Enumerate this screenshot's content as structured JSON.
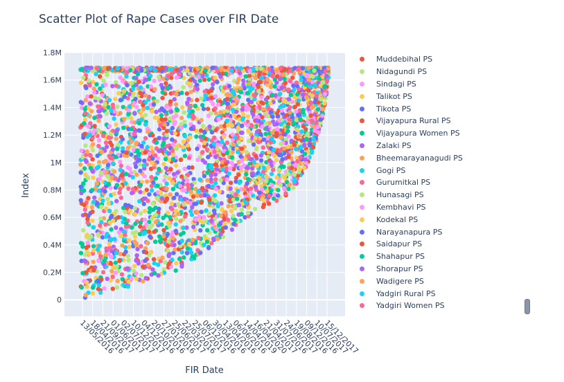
{
  "chart_data": {
    "type": "scatter",
    "title": "Scatter Plot of Rape Cases over FIR Date",
    "xlabel": "FIR Date",
    "ylabel": "Index",
    "ylim": [
      -120000,
      1800000
    ],
    "y_ticks": [
      {
        "value": 0,
        "label": "0"
      },
      {
        "value": 200000,
        "label": "0.2M"
      },
      {
        "value": 400000,
        "label": "0.4M"
      },
      {
        "value": 600000,
        "label": "0.6M"
      },
      {
        "value": 800000,
        "label": "0.8M"
      },
      {
        "value": 1000000,
        "label": "1M"
      },
      {
        "value": 1200000,
        "label": "1.2M"
      },
      {
        "value": 1400000,
        "label": "1.4M"
      },
      {
        "value": 1600000,
        "label": "1.6M"
      },
      {
        "value": 1800000,
        "label": "1.8M"
      }
    ],
    "x_tick_labels": [
      "13/05/2016",
      "18/04/2016",
      "21/09/2017",
      "01/06/2017",
      "02/07/2017",
      "10/12/2017",
      "04/12/2016",
      "20/10/2016",
      "27/01/2016",
      "25/06/2017",
      "22/03/2016",
      "25/07/2017",
      "06/12/2016",
      "30/04/2016",
      "13/04/2016",
      "06/06/2016",
      "14/04/2019",
      "16/04/2020",
      "21/04/2017",
      "31/07/2016",
      "24/06/2017",
      "19/08/2016",
      "09/12/2016",
      "10/07/2017",
      "15/12/2017"
    ],
    "series": [
      {
        "name": "Muddebihal PS",
        "color": "#EF553B"
      },
      {
        "name": "Nidagundi PS",
        "color": "#B6E880"
      },
      {
        "name": "Sindagi PS",
        "color": "#FF97FF"
      },
      {
        "name": "Talikot PS",
        "color": "#FECB52"
      },
      {
        "name": "Tikota PS",
        "color": "#636EFA"
      },
      {
        "name": "Vijayapura Rural PS",
        "color": "#EF553B"
      },
      {
        "name": "Vijayapura Women PS",
        "color": "#00CC96"
      },
      {
        "name": "Zalaki PS",
        "color": "#AB63FA"
      },
      {
        "name": "Bheemarayanagudi PS",
        "color": "#FFA15A"
      },
      {
        "name": "Gogi PS",
        "color": "#19D3F3"
      },
      {
        "name": "Gurumitkal PS",
        "color": "#FF6692"
      },
      {
        "name": "Hunasagi PS",
        "color": "#B6E880"
      },
      {
        "name": "Kembhavi PS",
        "color": "#FF97FF"
      },
      {
        "name": "Kodekal PS",
        "color": "#FECB52"
      },
      {
        "name": "Narayanapura PS",
        "color": "#636EFA"
      },
      {
        "name": "Saidapur PS",
        "color": "#EF553B"
      },
      {
        "name": "Shahapur  PS",
        "color": "#00CC96"
      },
      {
        "name": "Shorapur PS",
        "color": "#AB63FA"
      },
      {
        "name": "Wadigere PS",
        "color": "#FFA15A"
      },
      {
        "name": "Yadgiri Rural PS",
        "color": "#19D3F3"
      },
      {
        "name": "Yadgiri Women PS",
        "color": "#FF6692"
      }
    ],
    "point_palette": [
      "#636EFA",
      "#EF553B",
      "#00CC96",
      "#AB63FA",
      "#FFA15A",
      "#19D3F3",
      "#FF6692",
      "#B6E880",
      "#FF97FF",
      "#FECB52"
    ],
    "y_max_value": 1690000,
    "grid": true,
    "legend_position": "right"
  }
}
